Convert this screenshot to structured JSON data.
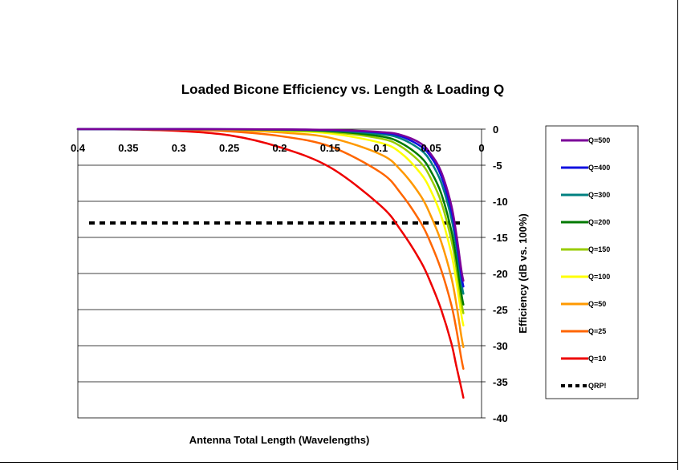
{
  "chart_data": {
    "type": "line",
    "title": "Loaded Bicone Efficiency vs. Length & Loading Q",
    "xlabel": "Antenna Total Length (Wavelengths)",
    "ylabel": "Efficiency (dB vs. 100%)",
    "xlim": [
      0.4,
      0
    ],
    "ylim": [
      -40,
      0
    ],
    "x_ticks": [
      "0.4",
      "0.35",
      "0.3",
      "0.25",
      "0.2",
      "0.15",
      "0.1",
      "0.05",
      "0"
    ],
    "y_ticks": [
      "0",
      "-5",
      "-10",
      "-15",
      "-20",
      "-25",
      "-30",
      "-35",
      "-40"
    ],
    "grid": true,
    "legend_position": "right",
    "x": [
      0.4,
      0.35,
      0.3,
      0.25,
      0.2,
      0.15,
      0.1,
      0.08,
      0.06,
      0.05,
      0.04,
      0.03,
      0.025,
      0.02,
      0.018
    ],
    "series": [
      {
        "name": "Q=500",
        "color": "#7b0099",
        "values": [
          0,
          0,
          0,
          -0.01,
          -0.03,
          -0.1,
          -0.4,
          -0.8,
          -2.0,
          -3.5,
          -5.9,
          -10.5,
          -14.5,
          -19.5,
          -21.0
        ]
      },
      {
        "name": "Q=400",
        "color": "#1010e0",
        "values": [
          0,
          0,
          0,
          -0.01,
          -0.04,
          -0.13,
          -0.5,
          -1.0,
          -2.4,
          -3.9,
          -6.5,
          -11.3,
          -15.3,
          -20.3,
          -21.8
        ]
      },
      {
        "name": "Q=300",
        "color": "#008080",
        "values": [
          0,
          0,
          0,
          -0.02,
          -0.06,
          -0.18,
          -0.7,
          -1.3,
          -2.9,
          -4.6,
          -7.4,
          -12.3,
          -16.3,
          -21.3,
          -22.8
        ]
      },
      {
        "name": "Q=200",
        "color": "#007a00",
        "values": [
          0,
          0,
          0,
          -0.03,
          -0.1,
          -0.28,
          -1.0,
          -1.9,
          -3.9,
          -5.9,
          -8.9,
          -14.0,
          -18.0,
          -22.8,
          -24.3
        ]
      },
      {
        "name": "Q=150",
        "color": "#99cc00",
        "values": [
          0,
          0,
          -0.01,
          -0.04,
          -0.14,
          -0.4,
          -1.3,
          -2.4,
          -4.7,
          -6.9,
          -10.1,
          -15.3,
          -19.2,
          -24.0,
          -25.5
        ]
      },
      {
        "name": "Q=100",
        "color": "#ffff00",
        "values": [
          0,
          0,
          -0.01,
          -0.06,
          -0.22,
          -0.6,
          -1.9,
          -3.3,
          -6.2,
          -8.6,
          -12.0,
          -17.2,
          -21.0,
          -25.7,
          -27.2
        ]
      },
      {
        "name": "Q=50",
        "color": "#ff9900",
        "values": [
          0,
          -0.01,
          -0.03,
          -0.13,
          -0.45,
          -1.2,
          -3.5,
          -5.7,
          -9.3,
          -12.1,
          -15.6,
          -20.5,
          -24.2,
          -28.7,
          -30.2
        ]
      },
      {
        "name": "Q=25",
        "color": "#ff6600",
        "values": [
          0,
          -0.02,
          -0.07,
          -0.3,
          -0.95,
          -2.4,
          -6.0,
          -8.9,
          -13.0,
          -15.9,
          -19.5,
          -24.3,
          -27.7,
          -31.8,
          -33.2
        ]
      },
      {
        "name": "Q=10",
        "color": "#ee0000",
        "values": [
          0,
          -0.04,
          -0.25,
          -0.85,
          -2.5,
          -5.3,
          -10.6,
          -14.0,
          -18.4,
          -21.4,
          -25.0,
          -29.6,
          -32.8,
          -35.9,
          -37.2
        ]
      },
      {
        "name": "QRP!",
        "color": "#000000",
        "dashed": true,
        "values": [
          -13,
          -13,
          -13,
          -13,
          -13,
          -13,
          -13,
          -13,
          -13,
          -13,
          -13,
          -13,
          -13,
          -13,
          -13
        ]
      }
    ]
  }
}
